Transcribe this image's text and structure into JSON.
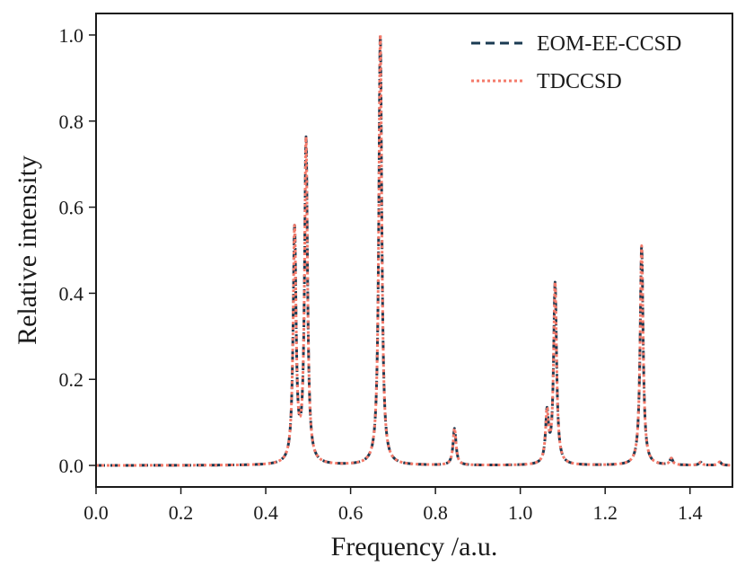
{
  "chart_data": {
    "type": "line",
    "xlabel": "Frequency /a.u.",
    "ylabel": "Relative intensity",
    "xlim": [
      0.0,
      1.5
    ],
    "ylim": [
      -0.05,
      1.05
    ],
    "x_ticks": [
      0.0,
      0.2,
      0.4,
      0.6,
      0.8,
      1.0,
      1.2,
      1.4
    ],
    "x_tick_labels": [
      "0.0",
      "0.2",
      "0.4",
      "0.6",
      "0.8",
      "1.0",
      "1.2",
      "1.4"
    ],
    "y_ticks": [
      0.0,
      0.2,
      0.4,
      0.6,
      0.8,
      1.0
    ],
    "y_tick_labels": [
      "0.0",
      "0.2",
      "0.4",
      "0.6",
      "0.8",
      "1.0"
    ],
    "grid": false,
    "legend_position": "top-right",
    "line_width_data": 0.0042,
    "peaks": [
      {
        "x": 0.468,
        "intensity": 0.54
      },
      {
        "x": 0.495,
        "intensity": 0.75
      },
      {
        "x": 0.67,
        "intensity": 1.0
      },
      {
        "x": 0.845,
        "intensity": 0.085
      },
      {
        "x": 1.063,
        "intensity": 0.115
      },
      {
        "x": 1.082,
        "intensity": 0.42
      },
      {
        "x": 1.286,
        "intensity": 0.51
      },
      {
        "x": 1.356,
        "intensity": 0.015
      },
      {
        "x": 1.425,
        "intensity": 0.007
      },
      {
        "x": 1.47,
        "intensity": 0.008
      }
    ],
    "series": [
      {
        "name": "EOM-EE-CCSD",
        "color": "#1a3a52",
        "dash": "10 6"
      },
      {
        "name": "TDCCSD",
        "color": "#f47a6a",
        "dash": "3 3"
      }
    ]
  }
}
